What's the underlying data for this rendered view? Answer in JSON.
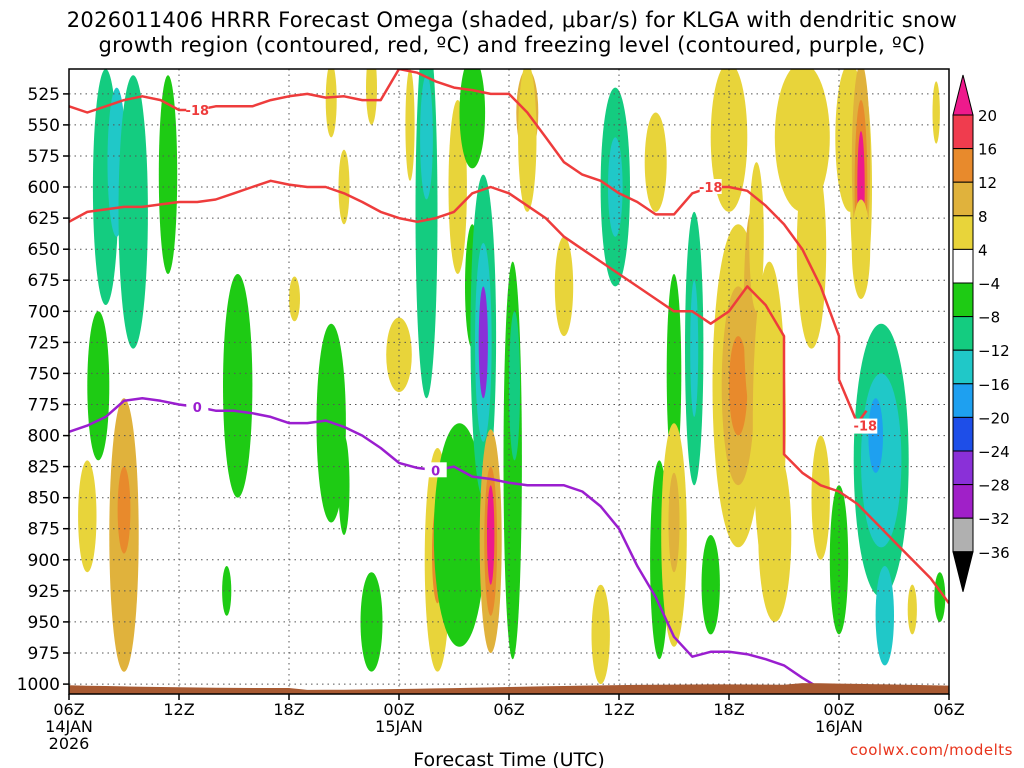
{
  "chart_data": {
    "type": "heatmap",
    "title_line1": "2026011406 HRRR Forecast Omega (shaded, μbar/s) for KLGA with dendritic snow",
    "title_line2": "growth region (contoured, red, ºC) and freezing level (contoured, purple, ºC)",
    "xlabel": "Forecast Time (UTC)",
    "credit": "coolwx.com/modelts",
    "y_ticks": [
      525,
      550,
      575,
      600,
      625,
      650,
      675,
      700,
      725,
      750,
      775,
      800,
      825,
      850,
      875,
      900,
      925,
      950,
      975,
      1000
    ],
    "x_ticks": [
      {
        "hour": 0,
        "label": "06Z",
        "sub": "14JAN",
        "sub2": "2026"
      },
      {
        "hour": 6,
        "label": "12Z",
        "sub": "",
        "sub2": ""
      },
      {
        "hour": 12,
        "label": "18Z",
        "sub": "",
        "sub2": ""
      },
      {
        "hour": 18,
        "label": "00Z",
        "sub": "15JAN",
        "sub2": ""
      },
      {
        "hour": 24,
        "label": "06Z",
        "sub": "",
        "sub2": ""
      },
      {
        "hour": 30,
        "label": "12Z",
        "sub": "",
        "sub2": ""
      },
      {
        "hour": 36,
        "label": "18Z",
        "sub": "",
        "sub2": ""
      },
      {
        "hour": 42,
        "label": "00Z",
        "sub": "16JAN",
        "sub2": ""
      },
      {
        "hour": 48,
        "label": "06Z",
        "sub": "",
        "sub2": ""
      }
    ],
    "x_range": [
      0,
      48
    ],
    "y_range": [
      505,
      1008
    ],
    "colorbar": {
      "labels": [
        "20",
        "16",
        "12",
        "8",
        "4",
        "−4",
        "−8",
        "−12",
        "−16",
        "−20",
        "−24",
        "−28",
        "−32",
        "−36"
      ],
      "colors": [
        "#f03c4e",
        "#e88a2c",
        "#e0b23c",
        "#e8d43a",
        "#ffffff",
        "#1ecb14",
        "#14cc80",
        "#20c8c8",
        "#1ea0f0",
        "#1e4ee8",
        "#8a30d8",
        "#a020c8",
        "#b0b0b0"
      ],
      "top_color": "#ee1a8c",
      "bottom_color": "#000000"
    },
    "dgz_top_line": {
      "label": "-18",
      "color": "#ee3c3c",
      "points": [
        [
          0,
          535
        ],
        [
          1,
          540
        ],
        [
          2,
          535
        ],
        [
          3,
          530
        ],
        [
          4,
          527
        ],
        [
          5,
          530
        ],
        [
          6,
          538
        ],
        [
          7,
          538
        ],
        [
          8,
          535
        ],
        [
          9,
          535
        ],
        [
          10,
          535
        ],
        [
          11,
          530
        ],
        [
          12,
          527
        ],
        [
          13,
          525
        ],
        [
          14,
          528
        ],
        [
          15,
          527
        ],
        [
          16,
          530
        ],
        [
          17,
          530
        ],
        [
          18,
          505
        ],
        [
          19,
          508
        ],
        [
          20,
          515
        ],
        [
          21,
          520
        ],
        [
          22,
          522
        ],
        [
          23,
          525
        ],
        [
          24,
          525
        ],
        [
          25,
          540
        ],
        [
          26,
          560
        ],
        [
          27,
          580
        ],
        [
          28,
          590
        ],
        [
          29,
          595
        ],
        [
          30,
          605
        ],
        [
          31,
          612
        ],
        [
          32,
          622
        ],
        [
          33,
          622
        ],
        [
          34,
          605
        ],
        [
          35,
          600
        ],
        [
          36,
          600
        ],
        [
          37,
          603
        ],
        [
          38,
          615
        ],
        [
          39,
          630
        ],
        [
          40,
          650
        ],
        [
          41,
          680
        ],
        [
          42,
          720
        ],
        [
          42,
          755
        ],
        [
          43,
          790
        ],
        [
          43.5,
          780
        ]
      ]
    },
    "dgz_bottom_line": {
      "label": "",
      "color": "#ee3c3c",
      "points": [
        [
          0,
          628
        ],
        [
          1,
          620
        ],
        [
          2,
          618
        ],
        [
          3,
          616
        ],
        [
          4,
          616
        ],
        [
          5,
          614
        ],
        [
          6,
          612
        ],
        [
          7,
          612
        ],
        [
          8,
          610
        ],
        [
          9,
          605
        ],
        [
          10,
          600
        ],
        [
          11,
          595
        ],
        [
          12,
          598
        ],
        [
          13,
          600
        ],
        [
          14,
          600
        ],
        [
          15,
          605
        ],
        [
          16,
          612
        ],
        [
          17,
          620
        ],
        [
          18,
          625
        ],
        [
          19,
          628
        ],
        [
          20,
          625
        ],
        [
          21,
          620
        ],
        [
          22,
          605
        ],
        [
          23,
          600
        ],
        [
          24,
          605
        ],
        [
          25,
          615
        ],
        [
          26,
          625
        ],
        [
          27,
          640
        ],
        [
          28,
          650
        ],
        [
          29,
          660
        ],
        [
          30,
          670
        ],
        [
          31,
          680
        ],
        [
          32,
          690
        ],
        [
          33,
          700
        ],
        [
          34,
          700
        ],
        [
          35,
          710
        ],
        [
          36,
          700
        ],
        [
          37,
          680
        ],
        [
          38,
          695
        ],
        [
          39,
          720
        ],
        [
          39,
          815
        ],
        [
          40,
          830
        ],
        [
          41,
          840
        ],
        [
          42,
          845
        ],
        [
          43,
          855
        ],
        [
          44,
          870
        ],
        [
          45,
          885
        ],
        [
          46,
          900
        ],
        [
          47,
          915
        ],
        [
          48,
          935
        ]
      ]
    },
    "freezing_line": {
      "label": "0",
      "color": "#9a1ecf",
      "points": [
        [
          0,
          797
        ],
        [
          1,
          792
        ],
        [
          2,
          785
        ],
        [
          3,
          772
        ],
        [
          4,
          770
        ],
        [
          5,
          772
        ],
        [
          6,
          775
        ],
        [
          7,
          777
        ],
        [
          8,
          780
        ],
        [
          9,
          780
        ],
        [
          10,
          782
        ],
        [
          11,
          785
        ],
        [
          12,
          790
        ],
        [
          13,
          790
        ],
        [
          14,
          788
        ],
        [
          15,
          793
        ],
        [
          16,
          800
        ],
        [
          17,
          810
        ],
        [
          18,
          822
        ],
        [
          19,
          826
        ],
        [
          20,
          828
        ],
        [
          21,
          825
        ],
        [
          22,
          833
        ],
        [
          23,
          835
        ],
        [
          24,
          838
        ],
        [
          25,
          840
        ],
        [
          26,
          840
        ],
        [
          27,
          840
        ],
        [
          28,
          845
        ],
        [
          29,
          857
        ],
        [
          30,
          875
        ],
        [
          31,
          905
        ],
        [
          32,
          930
        ],
        [
          33,
          962
        ],
        [
          34,
          978
        ],
        [
          35,
          974
        ],
        [
          36,
          974
        ],
        [
          37,
          976
        ],
        [
          38,
          980
        ],
        [
          39,
          985
        ],
        [
          40,
          995
        ],
        [
          41,
          1004
        ]
      ]
    },
    "dgz_extra_label": {
      "text": "-18",
      "hour": 43,
      "pressure": 800
    },
    "omega_cells": [
      {
        "h": 2.0,
        "p": 600,
        "rw": 0.7,
        "rh": 95,
        "v": -10
      },
      {
        "h": 2.6,
        "p": 580,
        "rw": 0.5,
        "rh": 60,
        "v": -14
      },
      {
        "h": 3.5,
        "p": 620,
        "rw": 0.8,
        "rh": 110,
        "v": -8
      },
      {
        "h": 5.4,
        "p": 590,
        "rw": 0.5,
        "rh": 80,
        "v": -6
      },
      {
        "h": 1.6,
        "p": 760,
        "rw": 0.6,
        "rh": 60,
        "v": -6
      },
      {
        "h": 1.0,
        "p": 865,
        "rw": 0.5,
        "rh": 45,
        "v": 5
      },
      {
        "h": 3.0,
        "p": 880,
        "rw": 0.8,
        "rh": 110,
        "v": 9
      },
      {
        "h": 3.0,
        "p": 860,
        "rw": 0.35,
        "rh": 35,
        "v": 13
      },
      {
        "h": 9.2,
        "p": 760,
        "rw": 0.8,
        "rh": 90,
        "v": -7
      },
      {
        "h": 8.6,
        "p": 925,
        "rw": 0.25,
        "rh": 20,
        "v": -6
      },
      {
        "h": 12.3,
        "p": 690,
        "rw": 0.3,
        "rh": 18,
        "v": 5
      },
      {
        "h": 14.3,
        "p": 790,
        "rw": 0.8,
        "rh": 80,
        "v": -6
      },
      {
        "h": 15.0,
        "p": 840,
        "rw": 0.3,
        "rh": 40,
        "v": -6
      },
      {
        "h": 14.3,
        "p": 530,
        "rw": 0.3,
        "rh": 30,
        "v": 4
      },
      {
        "h": 15.0,
        "p": 600,
        "rw": 0.3,
        "rh": 30,
        "v": 4
      },
      {
        "h": 16.5,
        "p": 950,
        "rw": 0.6,
        "rh": 40,
        "v": -6
      },
      {
        "h": 16.5,
        "p": 520,
        "rw": 0.3,
        "rh": 30,
        "v": 4
      },
      {
        "h": 18.0,
        "p": 735,
        "rw": 0.7,
        "rh": 30,
        "v": 5
      },
      {
        "h": 18.6,
        "p": 550,
        "rw": 0.25,
        "rh": 45,
        "v": 4
      },
      {
        "h": 19.5,
        "p": 620,
        "rw": 0.6,
        "rh": 150,
        "v": -8
      },
      {
        "h": 19.5,
        "p": 560,
        "rw": 0.35,
        "rh": 50,
        "v": -12
      },
      {
        "h": 21.2,
        "p": 600,
        "rw": 0.5,
        "rh": 70,
        "v": 6
      },
      {
        "h": 20.1,
        "p": 900,
        "rw": 0.7,
        "rh": 90,
        "v": 7
      },
      {
        "h": 20.1,
        "p": 895,
        "rw": 0.3,
        "rh": 40,
        "v": 12
      },
      {
        "h": 21.3,
        "p": 880,
        "rw": 1.4,
        "rh": 90,
        "v": -6
      },
      {
        "h": 22.0,
        "p": 540,
        "rw": 0.7,
        "rh": 45,
        "v": -7
      },
      {
        "h": 22.0,
        "p": 680,
        "rw": 0.4,
        "rh": 50,
        "v": -6
      },
      {
        "h": 22.6,
        "p": 720,
        "rw": 0.7,
        "rh": 130,
        "v": -8
      },
      {
        "h": 22.6,
        "p": 725,
        "rw": 0.45,
        "rh": 80,
        "v": -14
      },
      {
        "h": 22.6,
        "p": 725,
        "rw": 0.25,
        "rh": 45,
        "v": -26
      },
      {
        "h": 23.0,
        "p": 885,
        "rw": 0.6,
        "rh": 90,
        "v": 8
      },
      {
        "h": 23.0,
        "p": 885,
        "rw": 0.35,
        "rh": 60,
        "v": 14
      },
      {
        "h": 23.0,
        "p": 880,
        "rw": 0.2,
        "rh": 40,
        "v": 20
      },
      {
        "h": 24.2,
        "p": 820,
        "rw": 0.5,
        "rh": 160,
        "v": -6
      },
      {
        "h": 24.3,
        "p": 760,
        "rw": 0.3,
        "rh": 60,
        "v": -8
      },
      {
        "h": 25.0,
        "p": 540,
        "rw": 0.6,
        "rh": 35,
        "v": 10
      },
      {
        "h": 25.0,
        "p": 560,
        "rw": 0.5,
        "rh": 60,
        "v": 6
      },
      {
        "h": 27.0,
        "p": 680,
        "rw": 0.5,
        "rh": 40,
        "v": 5
      },
      {
        "h": 29.0,
        "p": 960,
        "rw": 0.5,
        "rh": 40,
        "v": 5
      },
      {
        "h": 29.8,
        "p": 600,
        "rw": 0.8,
        "rh": 80,
        "v": -8
      },
      {
        "h": 29.8,
        "p": 600,
        "rw": 0.4,
        "rh": 40,
        "v": -13
      },
      {
        "h": 32.0,
        "p": 580,
        "rw": 0.6,
        "rh": 40,
        "v": 4
      },
      {
        "h": 32.2,
        "p": 900,
        "rw": 0.5,
        "rh": 80,
        "v": -6
      },
      {
        "h": 33.0,
        "p": 750,
        "rw": 0.4,
        "rh": 80,
        "v": -7
      },
      {
        "h": 33.0,
        "p": 880,
        "rw": 0.7,
        "rh": 90,
        "v": 6
      },
      {
        "h": 33.0,
        "p": 870,
        "rw": 0.3,
        "rh": 40,
        "v": 11
      },
      {
        "h": 34.1,
        "p": 730,
        "rw": 0.5,
        "rh": 110,
        "v": -8
      },
      {
        "h": 34.1,
        "p": 730,
        "rw": 0.22,
        "rh": 55,
        "v": -14
      },
      {
        "h": 35.0,
        "p": 920,
        "rw": 0.5,
        "rh": 40,
        "v": -6
      },
      {
        "h": 36.0,
        "p": 560,
        "rw": 1.0,
        "rh": 60,
        "v": 5
      },
      {
        "h": 36.5,
        "p": 760,
        "rw": 1.4,
        "rh": 130,
        "v": 5
      },
      {
        "h": 36.5,
        "p": 760,
        "rw": 0.9,
        "rh": 80,
        "v": 9
      },
      {
        "h": 36.5,
        "p": 760,
        "rw": 0.5,
        "rh": 40,
        "v": 13
      },
      {
        "h": 37.2,
        "p": 700,
        "rw": 0.4,
        "rh": 80,
        "v": 10
      },
      {
        "h": 37.5,
        "p": 640,
        "rw": 0.4,
        "rh": 60,
        "v": 7
      },
      {
        "h": 38.2,
        "p": 790,
        "rw": 0.9,
        "rh": 130,
        "v": 5
      },
      {
        "h": 38.5,
        "p": 880,
        "rw": 0.9,
        "rh": 70,
        "v": 4
      },
      {
        "h": 40.0,
        "p": 560,
        "rw": 1.5,
        "rh": 60,
        "v": 5
      },
      {
        "h": 40.5,
        "p": 650,
        "rw": 0.8,
        "rh": 80,
        "v": 4
      },
      {
        "h": 41.0,
        "p": 850,
        "rw": 0.5,
        "rh": 50,
        "v": 5
      },
      {
        "h": 42.0,
        "p": 900,
        "rw": 0.5,
        "rh": 60,
        "v": -6
      },
      {
        "h": 42.6,
        "p": 560,
        "rw": 0.8,
        "rh": 60,
        "v": 5
      },
      {
        "h": 43.2,
        "p": 600,
        "rw": 0.6,
        "rh": 90,
        "v": 5
      },
      {
        "h": 43.2,
        "p": 580,
        "rw": 0.5,
        "rh": 80,
        "v": 10
      },
      {
        "h": 43.2,
        "p": 600,
        "rw": 0.35,
        "rh": 70,
        "v": 14
      },
      {
        "h": 43.2,
        "p": 600,
        "rw": 0.2,
        "rh": 45,
        "v": 20
      },
      {
        "h": 43.2,
        "p": 650,
        "rw": 0.5,
        "rh": 40,
        "v": 6
      },
      {
        "h": 44.3,
        "p": 820,
        "rw": 1.5,
        "rh": 110,
        "v": -8
      },
      {
        "h": 44.3,
        "p": 820,
        "rw": 1.1,
        "rh": 70,
        "v": -12
      },
      {
        "h": 44.0,
        "p": 800,
        "rw": 0.4,
        "rh": 30,
        "v": -16
      },
      {
        "h": 44.5,
        "p": 945,
        "rw": 0.5,
        "rh": 40,
        "v": -13
      },
      {
        "h": 46.0,
        "p": 940,
        "rw": 0.25,
        "rh": 20,
        "v": 5
      },
      {
        "h": 47.5,
        "p": 930,
        "rw": 0.3,
        "rh": 20,
        "v": -6
      },
      {
        "h": 47.3,
        "p": 540,
        "rw": 0.2,
        "rh": 25,
        "v": 4
      }
    ],
    "terrain": {
      "color": "#a85a32",
      "note": "surface terrain below ~1000 hPa"
    }
  }
}
